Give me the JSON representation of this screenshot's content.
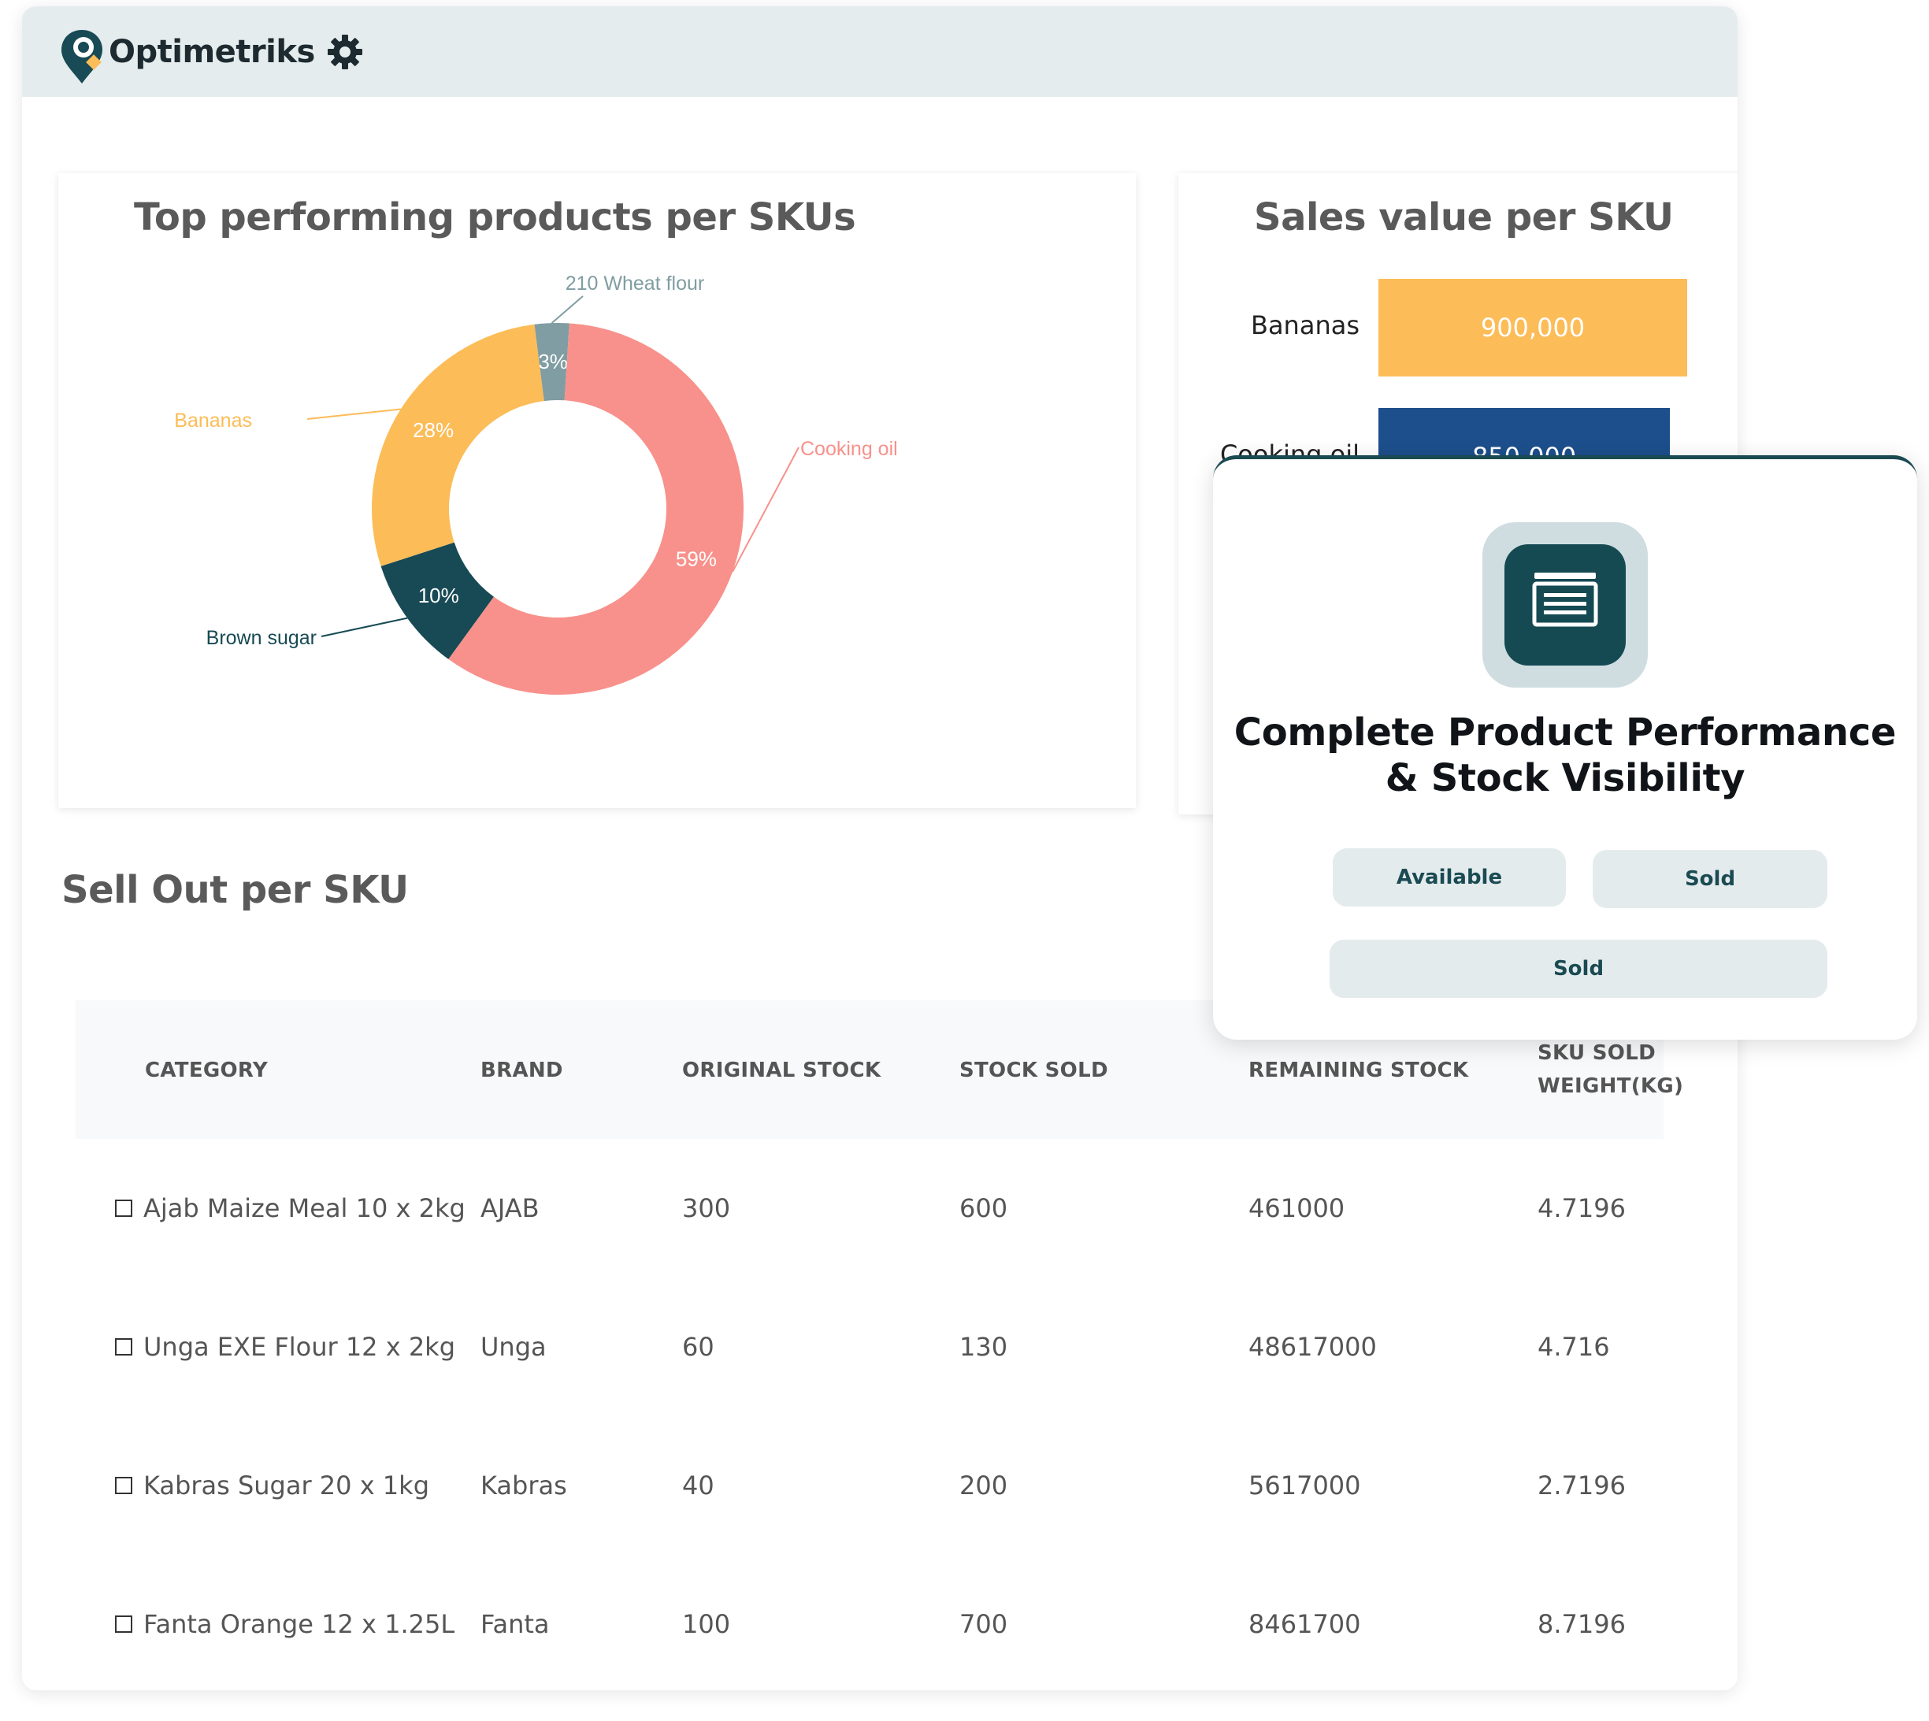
{
  "header": {
    "brand": "Optimetriks"
  },
  "pie_card": {
    "title": "Top performing products per SKUs"
  },
  "bar_card": {
    "title": "Sales value per SKU"
  },
  "chart_data": [
    {
      "type": "pie",
      "title": "Top performing products per SKUs",
      "variant": "donut",
      "slices": [
        {
          "label": "Cooking oil",
          "value": 59,
          "display": "59%",
          "color": "#f8918b"
        },
        {
          "label": "Brown sugar",
          "value": 10,
          "display": "10%",
          "color": "#174a55"
        },
        {
          "label": "Bananas",
          "value": 28,
          "display": "28%",
          "color": "#fcbc57"
        },
        {
          "label": "210 Wheat flour",
          "value": 3,
          "display": "3%",
          "color": "#7f9da2"
        }
      ]
    },
    {
      "type": "bar",
      "orientation": "horizontal",
      "title": "Sales value per SKU",
      "categories": [
        "Bananas",
        "Cooking oil"
      ],
      "values": [
        900000,
        850000
      ],
      "value_labels": [
        "900,000",
        "850,000"
      ],
      "colors": [
        "#fcbc57",
        "#1c4f8c"
      ]
    }
  ],
  "sellout": {
    "title": "Sell Out per SKU",
    "columns": {
      "category": "CATEGORY",
      "brand": "BRAND",
      "original_stock": "ORIGINAL STOCK",
      "stock_sold": "STOCK SOLD",
      "remaining_stock": "REMAINING STOCK",
      "sku_sold_weight_1": "SKU SOLD",
      "sku_sold_weight_2": "WEIGHT(KG)"
    },
    "rows": [
      {
        "category": "Ajab Maize Meal 10 x 2kg",
        "brand": "AJAB",
        "original_stock": "300",
        "stock_sold": "600",
        "remaining_stock": "461000",
        "weight": "4.7196"
      },
      {
        "category": "Unga EXE  Flour 12 x 2kg",
        "brand": "Unga",
        "original_stock": "60",
        "stock_sold": "130",
        "remaining_stock": "48617000",
        "weight": "4.716"
      },
      {
        "category": "Kabras  Sugar 20 x 1kg",
        "brand": "Kabras",
        "original_stock": "40",
        "stock_sold": "200",
        "remaining_stock": "5617000",
        "weight": "2.7196"
      },
      {
        "category": "Fanta Orange 12 x 1.25L",
        "brand": "Fanta",
        "original_stock": "100",
        "stock_sold": "700",
        "remaining_stock": "8461700",
        "weight": "8.7196"
      }
    ]
  },
  "popup": {
    "icon": "window-list-icon",
    "title_line1": "Complete Product Performance",
    "title_line2": "& Stock Visibility",
    "pill_available": "Available",
    "pill_sold": "Sold",
    "pill_sold_wide": "Sold"
  }
}
